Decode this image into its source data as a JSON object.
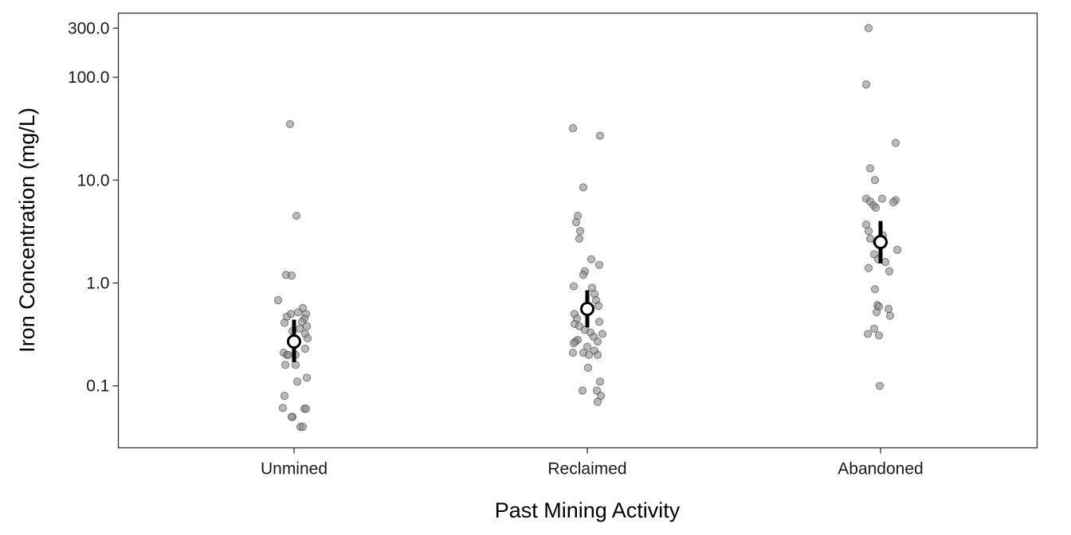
{
  "chart_data": {
    "type": "scatter",
    "xlabel": "Past Mining Activity",
    "ylabel": "Iron Concentration (mg/L)",
    "y_scale": "log10",
    "ylim": [
      0.025,
      420
    ],
    "y_ticks": [
      0.1,
      1.0,
      10.0,
      100.0,
      300.0
    ],
    "y_tick_labels": [
      "0.1",
      "1.0",
      "10.0",
      "100.0",
      "300.0"
    ],
    "grid": false,
    "categories": [
      "Unmined",
      "Reclaimed",
      "Abandoned"
    ],
    "groups": [
      {
        "category": "Unmined",
        "points": [
          {
            "dx": -0.05,
            "y": 35
          },
          {
            "dx": 0.03,
            "y": 4.5
          },
          {
            "dx": -0.1,
            "y": 1.2
          },
          {
            "dx": -0.03,
            "y": 1.18
          },
          {
            "dx": -0.2,
            "y": 0.68
          },
          {
            "dx": 0.11,
            "y": 0.57
          },
          {
            "dx": 0.05,
            "y": 0.52
          },
          {
            "dx": 0.15,
            "y": 0.5
          },
          {
            "dx": -0.04,
            "y": 0.5
          },
          {
            "dx": -0.09,
            "y": 0.47
          },
          {
            "dx": 0.13,
            "y": 0.45
          },
          {
            "dx": 0.1,
            "y": 0.42
          },
          {
            "dx": -0.12,
            "y": 0.41
          },
          {
            "dx": 0.16,
            "y": 0.38
          },
          {
            "dx": 0.07,
            "y": 0.36
          },
          {
            "dx": -0.02,
            "y": 0.34
          },
          {
            "dx": 0.14,
            "y": 0.32
          },
          {
            "dx": 0.17,
            "y": 0.29
          },
          {
            "dx": 0.14,
            "y": 0.23
          },
          {
            "dx": -0.13,
            "y": 0.21
          },
          {
            "dx": -0.09,
            "y": 0.2
          },
          {
            "dx": -0.07,
            "y": 0.2
          },
          {
            "dx": 0.02,
            "y": 0.2
          },
          {
            "dx": -0.11,
            "y": 0.16
          },
          {
            "dx": 0.02,
            "y": 0.16
          },
          {
            "dx": 0.16,
            "y": 0.12
          },
          {
            "dx": 0.04,
            "y": 0.11
          },
          {
            "dx": -0.12,
            "y": 0.08
          },
          {
            "dx": -0.14,
            "y": 0.061
          },
          {
            "dx": 0.13,
            "y": 0.06
          },
          {
            "dx": 0.15,
            "y": 0.06
          },
          {
            "dx": -0.02,
            "y": 0.05
          },
          {
            "dx": -0.03,
            "y": 0.05
          },
          {
            "dx": 0.08,
            "y": 0.04
          },
          {
            "dx": 0.11,
            "y": 0.04
          }
        ],
        "mean": 0.27,
        "ci": [
          0.17,
          0.44
        ]
      },
      {
        "category": "Reclaimed",
        "points": [
          {
            "dx": -0.18,
            "y": 32
          },
          {
            "dx": 0.16,
            "y": 27
          },
          {
            "dx": -0.05,
            "y": 8.5
          },
          {
            "dx": -0.12,
            "y": 4.5
          },
          {
            "dx": -0.14,
            "y": 3.9
          },
          {
            "dx": -0.09,
            "y": 3.2
          },
          {
            "dx": -0.1,
            "y": 2.7
          },
          {
            "dx": 0.05,
            "y": 1.7
          },
          {
            "dx": 0.15,
            "y": 1.5
          },
          {
            "dx": -0.03,
            "y": 1.3
          },
          {
            "dx": -0.05,
            "y": 1.2
          },
          {
            "dx": -0.17,
            "y": 0.93
          },
          {
            "dx": 0.06,
            "y": 0.9
          },
          {
            "dx": 0.09,
            "y": 0.78
          },
          {
            "dx": 0.11,
            "y": 0.68
          },
          {
            "dx": 0.14,
            "y": 0.6
          },
          {
            "dx": -0.16,
            "y": 0.5
          },
          {
            "dx": -0.13,
            "y": 0.45
          },
          {
            "dx": 0.15,
            "y": 0.42
          },
          {
            "dx": -0.16,
            "y": 0.4
          },
          {
            "dx": -0.1,
            "y": 0.38
          },
          {
            "dx": -0.03,
            "y": 0.35
          },
          {
            "dx": 0.04,
            "y": 0.33
          },
          {
            "dx": 0.19,
            "y": 0.32
          },
          {
            "dx": 0.08,
            "y": 0.3
          },
          {
            "dx": -0.12,
            "y": 0.28
          },
          {
            "dx": -0.15,
            "y": 0.27
          },
          {
            "dx": 0.13,
            "y": 0.27
          },
          {
            "dx": -0.17,
            "y": 0.26
          },
          {
            "dx": 0.0,
            "y": 0.24
          },
          {
            "dx": 0.09,
            "y": 0.22
          },
          {
            "dx": -0.18,
            "y": 0.21
          },
          {
            "dx": -0.05,
            "y": 0.21
          },
          {
            "dx": 0.02,
            "y": 0.2
          },
          {
            "dx": 0.13,
            "y": 0.2
          },
          {
            "dx": 0.01,
            "y": 0.15
          },
          {
            "dx": 0.16,
            "y": 0.11
          },
          {
            "dx": 0.12,
            "y": 0.09
          },
          {
            "dx": -0.06,
            "y": 0.09
          },
          {
            "dx": 0.17,
            "y": 0.08
          },
          {
            "dx": 0.13,
            "y": 0.07
          }
        ],
        "mean": 0.56,
        "ci": [
          0.37,
          0.85
        ]
      },
      {
        "category": "Abandoned",
        "points": [
          {
            "dx": -0.15,
            "y": 300
          },
          {
            "dx": -0.18,
            "y": 85
          },
          {
            "dx": 0.19,
            "y": 23
          },
          {
            "dx": -0.13,
            "y": 13
          },
          {
            "dx": -0.07,
            "y": 10
          },
          {
            "dx": -0.18,
            "y": 6.6
          },
          {
            "dx": 0.02,
            "y": 6.6
          },
          {
            "dx": 0.19,
            "y": 6.4
          },
          {
            "dx": -0.13,
            "y": 6.2
          },
          {
            "dx": 0.16,
            "y": 6.1
          },
          {
            "dx": -0.09,
            "y": 5.7
          },
          {
            "dx": -0.06,
            "y": 5.4
          },
          {
            "dx": -0.18,
            "y": 3.7
          },
          {
            "dx": -0.15,
            "y": 3.2
          },
          {
            "dx": 0.03,
            "y": 2.9
          },
          {
            "dx": -0.13,
            "y": 2.7
          },
          {
            "dx": -0.05,
            "y": 2.5
          },
          {
            "dx": 0.21,
            "y": 2.1
          },
          {
            "dx": -0.08,
            "y": 1.9
          },
          {
            "dx": -0.03,
            "y": 1.7
          },
          {
            "dx": 0.06,
            "y": 1.6
          },
          {
            "dx": -0.15,
            "y": 1.4
          },
          {
            "dx": 0.11,
            "y": 1.3
          },
          {
            "dx": -0.07,
            "y": 0.87
          },
          {
            "dx": -0.04,
            "y": 0.61
          },
          {
            "dx": -0.02,
            "y": 0.59
          },
          {
            "dx": 0.1,
            "y": 0.56
          },
          {
            "dx": -0.05,
            "y": 0.52
          },
          {
            "dx": 0.12,
            "y": 0.48
          },
          {
            "dx": -0.08,
            "y": 0.36
          },
          {
            "dx": -0.16,
            "y": 0.32
          },
          {
            "dx": -0.02,
            "y": 0.31
          },
          {
            "dx": -0.01,
            "y": 0.1
          }
        ],
        "mean": 2.5,
        "ci": [
          1.55,
          4.0
        ]
      }
    ]
  }
}
